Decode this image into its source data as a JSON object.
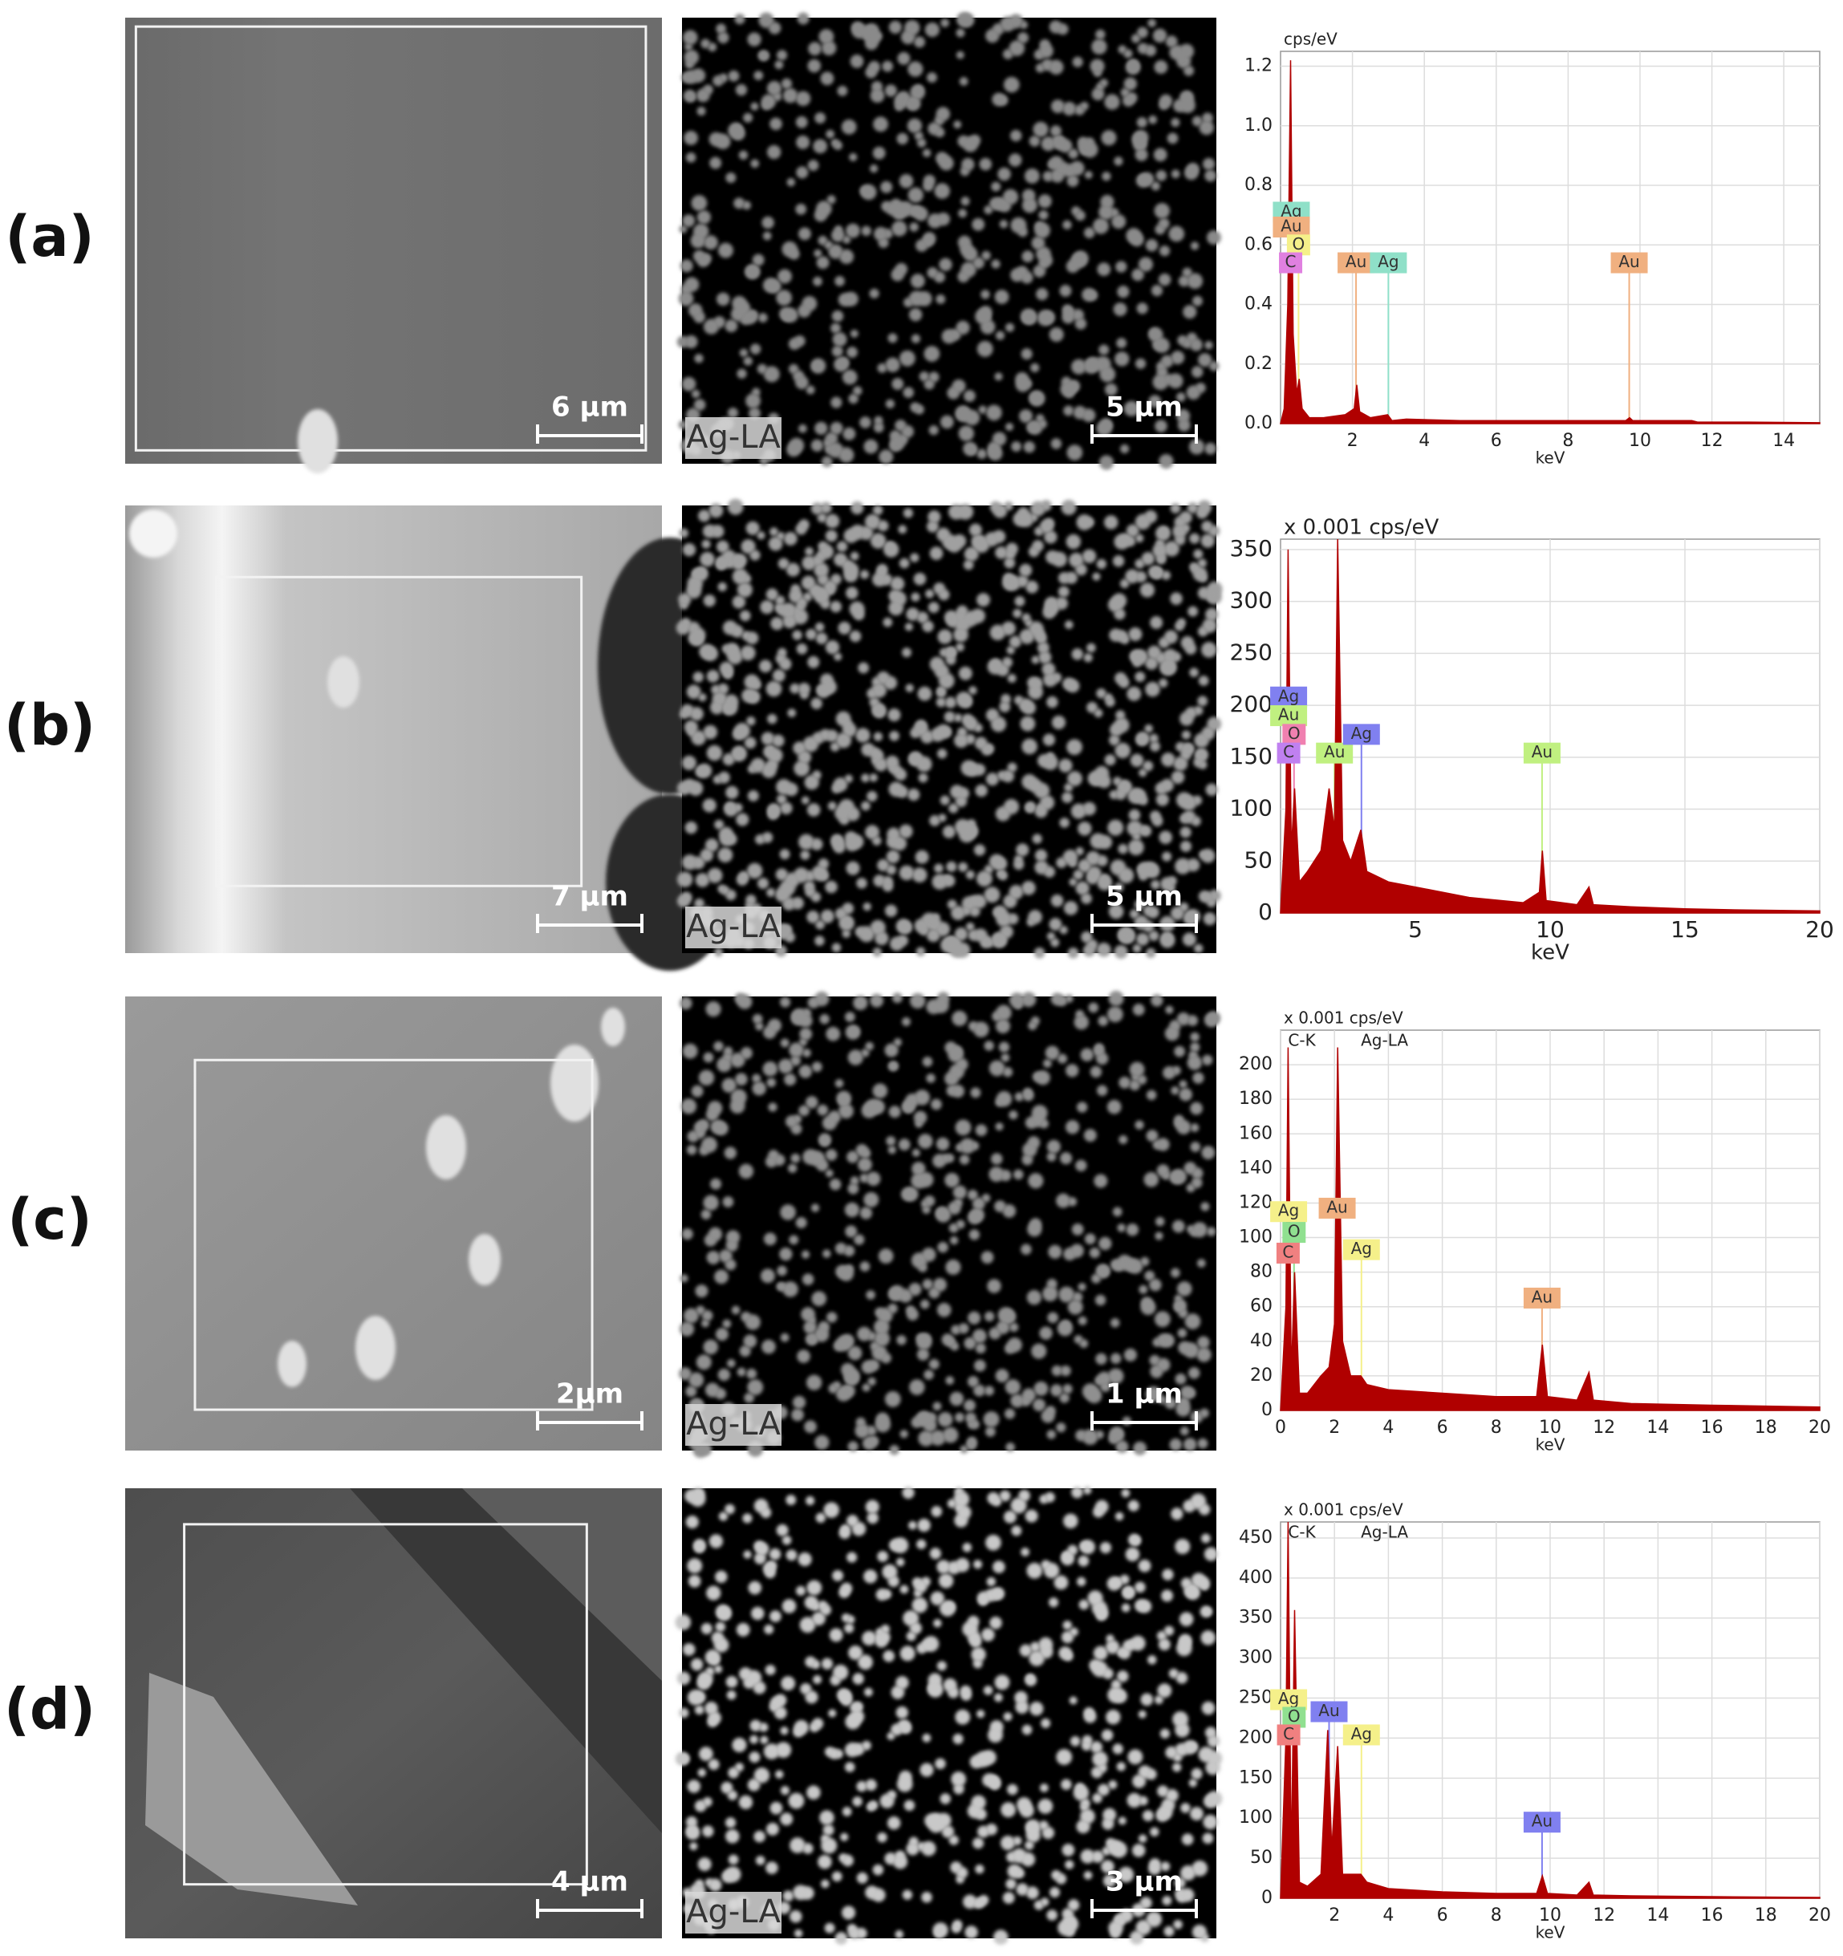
{
  "panels": [
    {
      "label": "(a)",
      "sem": {
        "scale_bar": "6 µm"
      },
      "map": {
        "element": "Ag-LA",
        "scale_bar": "5 µm"
      },
      "spectrum": {
        "type": "area",
        "y_unit": "cps/eV",
        "xlabel": "keV",
        "color": "#b00000",
        "grid": true,
        "xlim": [
          0,
          15
        ],
        "xticks": [
          2,
          4,
          6,
          8,
          10,
          12,
          14
        ],
        "ylim": [
          0,
          1.25
        ],
        "yticks": [
          {
            "value": 0,
            "label": "0.0"
          },
          0.2,
          0.4,
          0.6,
          0.8,
          {
            "value": 1,
            "label": "1.0"
          },
          1.2
        ],
        "x": [
          0,
          0.1,
          0.2,
          0.28,
          0.35,
          0.45,
          0.52,
          0.6,
          0.8,
          1.2,
          1.8,
          2.05,
          2.12,
          2.2,
          2.5,
          2.98,
          3.1,
          3.5,
          5,
          7,
          9,
          9.6,
          9.71,
          9.8,
          11,
          11.44,
          11.6,
          13,
          15
        ],
        "values": [
          0,
          0.05,
          0.4,
          1.22,
          0.3,
          0.1,
          0.15,
          0.05,
          0.02,
          0.02,
          0.03,
          0.05,
          0.13,
          0.04,
          0.02,
          0.03,
          0.01,
          0.015,
          0.01,
          0.01,
          0.01,
          0.01,
          0.02,
          0.01,
          0.01,
          0.01,
          0.005,
          0.005,
          0.003
        ],
        "tags": [
          {
            "label": "Ag",
            "x": 0.3,
            "y": 0.71,
            "color": "#8fe0c8"
          },
          {
            "label": "Au",
            "x": 0.3,
            "y": 0.66,
            "color": "#f0b080"
          },
          {
            "label": "O",
            "x": 0.5,
            "y": 0.6,
            "color": "#f5f08a"
          },
          {
            "label": "C",
            "x": 0.28,
            "y": 0.54,
            "color": "#e080e0"
          },
          {
            "label": "Au",
            "x": 2.1,
            "y": 0.54,
            "color": "#f0b080"
          },
          {
            "label": "Ag",
            "x": 3.0,
            "y": 0.54,
            "color": "#8fe0c8"
          },
          {
            "label": "Au",
            "x": 9.7,
            "y": 0.54,
            "color": "#f0b080"
          }
        ],
        "annotations": []
      }
    },
    {
      "label": "(b)",
      "sem": {
        "scale_bar": "7 µm"
      },
      "map": {
        "element": "Ag-LA",
        "scale_bar": "5 µm"
      },
      "spectrum": {
        "type": "area",
        "y_unit": "x 0.001 cps/eV",
        "xlabel": "keV",
        "color": "#b00000",
        "grid": true,
        "xlim": [
          0,
          20
        ],
        "xticks": [
          5,
          10,
          15,
          20
        ],
        "ylim": [
          0,
          360
        ],
        "yticks": [
          0,
          50,
          100,
          150,
          200,
          250,
          300,
          350
        ],
        "x": [
          0,
          0.2,
          0.28,
          0.4,
          0.52,
          0.7,
          1.0,
          1.5,
          1.8,
          2.0,
          2.12,
          2.3,
          2.6,
          2.98,
          3.2,
          4,
          5,
          7,
          9,
          9.6,
          9.71,
          9.85,
          11,
          11.44,
          11.6,
          13,
          15,
          17,
          20
        ],
        "values": [
          0,
          100,
          350,
          60,
          120,
          30,
          40,
          60,
          120,
          80,
          360,
          70,
          50,
          80,
          40,
          30,
          25,
          15,
          10,
          20,
          60,
          12,
          8,
          25,
          8,
          6,
          4,
          3,
          2
        ],
        "tags": [
          {
            "label": "Ag",
            "x": 0.3,
            "y": 208,
            "color": "#8080f0"
          },
          {
            "label": "Au",
            "x": 0.3,
            "y": 190,
            "color": "#c0f080"
          },
          {
            "label": "O",
            "x": 0.5,
            "y": 172,
            "color": "#f080b0"
          },
          {
            "label": "C",
            "x": 0.3,
            "y": 154,
            "color": "#c080f0"
          },
          {
            "label": "Au",
            "x": 2.0,
            "y": 154,
            "color": "#c0f080"
          },
          {
            "label": "Ag",
            "x": 3.0,
            "y": 172,
            "color": "#8080f0"
          },
          {
            "label": "Au",
            "x": 9.7,
            "y": 154,
            "color": "#c0f080"
          }
        ],
        "annotations": []
      }
    },
    {
      "label": "(c)",
      "sem": {
        "scale_bar": "2µm"
      },
      "map": {
        "element": "Ag-LA",
        "scale_bar": "1 µm"
      },
      "spectrum": {
        "type": "area",
        "y_unit": "x 0.001 cps/eV",
        "xlabel": "keV",
        "color": "#b00000",
        "grid": true,
        "xlim": [
          0,
          20
        ],
        "xticks": [
          0,
          2,
          4,
          6,
          8,
          10,
          12,
          14,
          16,
          18,
          20
        ],
        "ylim": [
          0,
          220
        ],
        "yticks": [
          0,
          20,
          40,
          60,
          80,
          100,
          120,
          140,
          160,
          180,
          200
        ],
        "x": [
          0,
          0.2,
          0.28,
          0.4,
          0.52,
          0.7,
          1.0,
          1.5,
          1.8,
          2.0,
          2.12,
          2.3,
          2.6,
          2.98,
          3.2,
          4,
          6,
          8,
          9.5,
          9.71,
          9.9,
          11,
          11.44,
          11.6,
          13,
          16,
          20
        ],
        "values": [
          0,
          60,
          210,
          20,
          80,
          10,
          10,
          20,
          25,
          50,
          210,
          40,
          20,
          20,
          15,
          12,
          10,
          8,
          8,
          38,
          8,
          6,
          22,
          6,
          4,
          3,
          2
        ],
        "tags": [
          {
            "label": "Ag",
            "x": 0.3,
            "y": 115,
            "color": "#f5f08a"
          },
          {
            "label": "O",
            "x": 0.5,
            "y": 103,
            "color": "#90e090"
          },
          {
            "label": "C",
            "x": 0.28,
            "y": 91,
            "color": "#f08080"
          },
          {
            "label": "Au",
            "x": 2.1,
            "y": 117,
            "color": "#f0b080"
          },
          {
            "label": "Ag",
            "x": 3.0,
            "y": 93,
            "color": "#f5f08a"
          },
          {
            "label": "Au",
            "x": 9.7,
            "y": 65,
            "color": "#f0b080"
          }
        ],
        "annotations": [
          {
            "text": "C-K",
            "x": 0.28
          },
          {
            "text": "Ag-LA",
            "x": 2.98
          }
        ]
      }
    },
    {
      "label": "(d)",
      "sem": {
        "scale_bar": "4 µm"
      },
      "map": {
        "element": "Ag-LA",
        "scale_bar": "3 µm"
      },
      "spectrum": {
        "type": "area",
        "y_unit": "x 0.001 cps/eV",
        "xlabel": "keV",
        "color": "#b00000",
        "grid": true,
        "xlim": [
          0,
          20
        ],
        "xticks": [
          2,
          4,
          6,
          8,
          10,
          12,
          14,
          16,
          18,
          20
        ],
        "ylim": [
          0,
          470
        ],
        "yticks": [
          0,
          50,
          100,
          150,
          200,
          250,
          300,
          350,
          400,
          450
        ],
        "x": [
          0,
          0.2,
          0.28,
          0.4,
          0.52,
          0.7,
          1.0,
          1.5,
          1.75,
          1.9,
          2.12,
          2.3,
          2.98,
          3.2,
          4,
          6,
          8,
          9.5,
          9.71,
          9.9,
          11,
          11.44,
          11.6,
          13,
          16,
          20
        ],
        "values": [
          0,
          200,
          470,
          40,
          360,
          20,
          15,
          30,
          210,
          60,
          190,
          30,
          30,
          20,
          12,
          8,
          6,
          6,
          28,
          6,
          4,
          20,
          4,
          3,
          2,
          1
        ],
        "tags": [
          {
            "label": "Ag",
            "x": 0.3,
            "y": 248,
            "color": "#f5f08a"
          },
          {
            "label": "O",
            "x": 0.5,
            "y": 226,
            "color": "#90e090"
          },
          {
            "label": "C",
            "x": 0.3,
            "y": 204,
            "color": "#f08080"
          },
          {
            "label": "Au",
            "x": 1.8,
            "y": 233,
            "color": "#8080f0"
          },
          {
            "label": "Ag",
            "x": 3.0,
            "y": 204,
            "color": "#f5f08a"
          },
          {
            "label": "Au",
            "x": 9.7,
            "y": 95,
            "color": "#8080f0"
          }
        ],
        "annotations": [
          {
            "text": "C-K",
            "x": 0.28
          },
          {
            "text": "Ag-LA",
            "x": 2.98
          }
        ]
      }
    }
  ]
}
